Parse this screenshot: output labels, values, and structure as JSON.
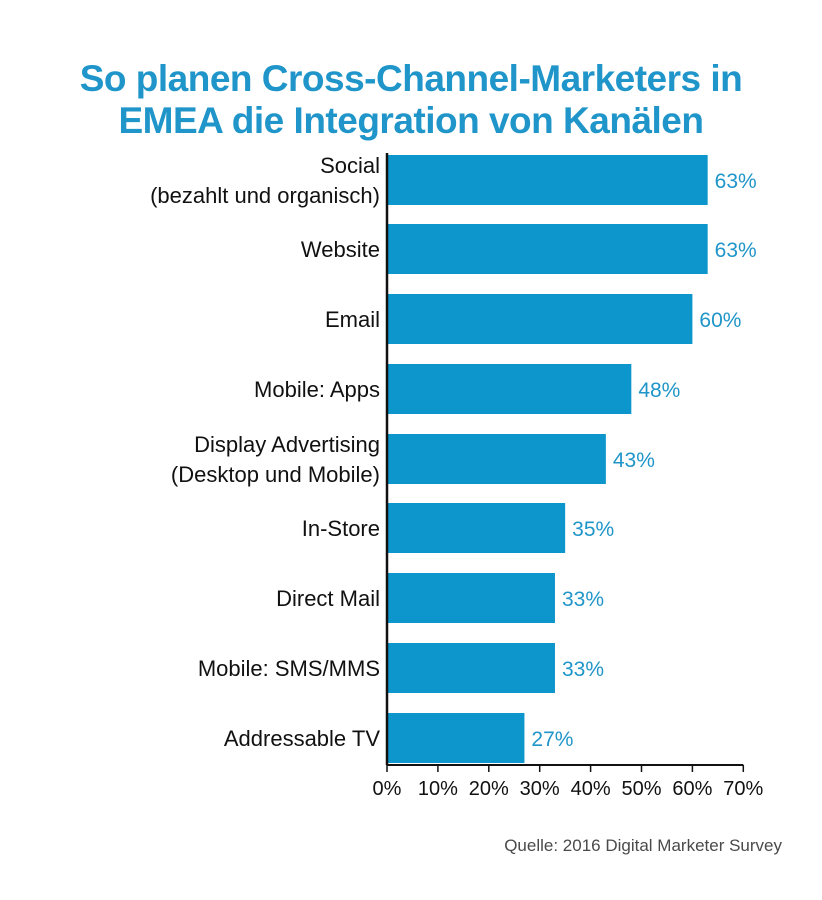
{
  "title_lines": [
    "So planen Cross-Channel-Marketers in",
    "EMEA die Integration von Kanälen"
  ],
  "source": "Quelle: 2016 Digital Marketer Survey",
  "colors": {
    "bar": "#0d96cb",
    "title": "#1f95c9",
    "value_label": "#1f95c9",
    "text": "#111111",
    "axis": "#111111"
  },
  "chart_data": {
    "type": "bar",
    "orientation": "horizontal",
    "categories": [
      [
        "Social",
        "(bezahlt und organisch)"
      ],
      [
        "Website"
      ],
      [
        "Email"
      ],
      [
        "Mobile: Apps"
      ],
      [
        "Display Advertising",
        "(Desktop und Mobile)"
      ],
      [
        "In-Store"
      ],
      [
        "Direct Mail"
      ],
      [
        "Mobile: SMS/MMS"
      ],
      [
        "Addressable TV"
      ]
    ],
    "values": [
      63,
      63,
      60,
      48,
      43,
      35,
      33,
      33,
      27
    ],
    "value_labels": [
      "63%",
      "63%",
      "60%",
      "48%",
      "43%",
      "35%",
      "33%",
      "33%",
      "27%"
    ],
    "xlim": [
      0,
      70
    ],
    "xticks": [
      0,
      10,
      20,
      30,
      40,
      50,
      60,
      70
    ],
    "xtick_labels": [
      "0%",
      "10%",
      "20%",
      "30%",
      "40%",
      "50%",
      "60%",
      "70%"
    ],
    "grid": false,
    "legend": "none"
  }
}
